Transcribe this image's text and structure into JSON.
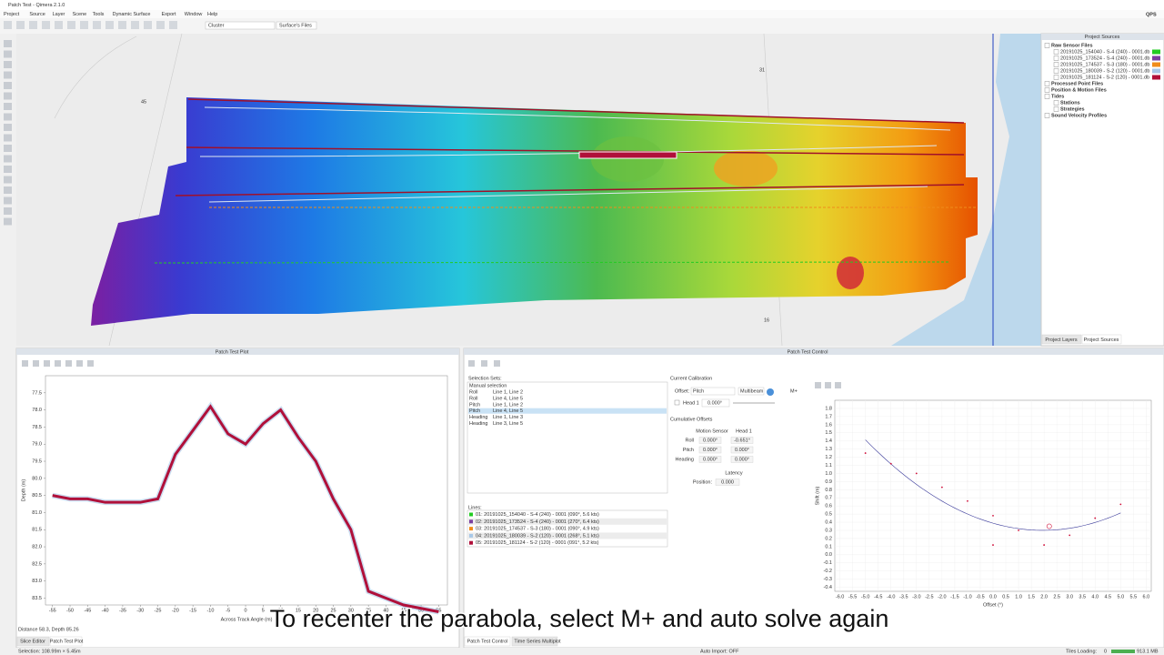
{
  "window": {
    "title": "Patch Test - Qimera 2.1.0",
    "menu": [
      "Project",
      "Source",
      "Layer",
      "Scene",
      "Tools",
      "Dynamic Surface",
      "Export",
      "Window",
      "Help"
    ],
    "toolbar": {
      "cluster": "Cluster",
      "files": "Surface's Files"
    },
    "logo": "QPS"
  },
  "map": {
    "labels": [
      "31",
      "45",
      "16"
    ]
  },
  "project_sources": {
    "title": "Project Sources",
    "raw": "Raw Sensor Files",
    "files": [
      {
        "name": "20191025_154040 - S-4 (240) - 0001.db",
        "color": "#22cc22"
      },
      {
        "name": "20191025_173524 - S-4 (240) - 0001.db",
        "color": "#7b3fa0"
      },
      {
        "name": "20191025_174537 - S-3 (180) - 0001.db",
        "color": "#f08c1a"
      },
      {
        "name": "20191025_180039 - S-2 (120) - 0001.db",
        "color": "#a8c8e8"
      },
      {
        "name": "20191025_181124 - S-2 (120) - 0001.db",
        "color": "#b0103a"
      }
    ],
    "groups": [
      "Processed Point Files",
      "Position & Motion Files",
      "Tides"
    ],
    "tides_children": [
      "Stations",
      "Strategies"
    ],
    "svp": "Sound Velocity Profiles",
    "tabs": [
      "Project Layers",
      "Project Sources"
    ]
  },
  "patch_test_plot": {
    "title": "Patch Test Plot",
    "x_label": "Across Track Angle (m)",
    "y_label": "Depth (m)",
    "xlim": [
      -57,
      57.5
    ],
    "ylim": [
      77,
      83.7
    ],
    "xticks": [
      -55,
      -50,
      -45,
      -40,
      -35,
      -30,
      -25,
      -20,
      -15,
      -10,
      -5,
      0,
      5,
      10,
      15,
      20,
      25,
      30,
      35,
      40,
      45,
      50,
      55
    ],
    "yticks": [
      77.5,
      {
        "value": 78,
        "label": "78.0"
      },
      78.5,
      {
        "value": 79,
        "label": "79.0"
      },
      79.5,
      {
        "value": 80,
        "label": "80.0"
      },
      80.5,
      {
        "value": 81,
        "label": "81.0"
      },
      81.5,
      {
        "value": 82,
        "label": "82.0"
      },
      82.5,
      {
        "value": 83,
        "label": "83.0"
      },
      83.5
    ],
    "x": [
      -55,
      -50,
      -45,
      -40,
      -35,
      -30,
      -25,
      -20,
      -15,
      -10,
      -5,
      0,
      5,
      10,
      15,
      20,
      25,
      30,
      35,
      40,
      45,
      50,
      55
    ],
    "depth": [
      80.5,
      80.6,
      80.6,
      80.7,
      80.7,
      80.7,
      80.6,
      79.3,
      78.6,
      77.9,
      78.7,
      79.0,
      78.4,
      78.0,
      78.8,
      79.5,
      80.6,
      81.5,
      83.3,
      83.5,
      83.7,
      83.8,
      83.9
    ],
    "readout": "Distance 58.3, Depth 85.26",
    "tabs": [
      "Slice Editor",
      "Patch Test Plot"
    ]
  },
  "patch_test_control": {
    "title": "Patch Test Control",
    "selection_sets_label": "Selection Sets:",
    "manual": "Manual selection",
    "selection_sets": [
      [
        "Roll",
        "Line 1, Line 2"
      ],
      [
        "Roll",
        "Line 4, Line 5"
      ],
      [
        "Pitch",
        "Line 1, Line 2"
      ],
      [
        "Pitch",
        "Line 4, Line 5"
      ],
      [
        "Heading",
        "Line 1, Line 3"
      ],
      [
        "Heading",
        "Line 3, Line 5"
      ]
    ],
    "lines_label": "Lines:",
    "lines": [
      "01: 20191025_154040 - S-4 (240) - 0001 (090°, 5.6 kts)",
      "02: 20191025_173524 - S-4 (240) - 0001 (270°, 6.4 kts)",
      "03: 20191025_174537 - S-3 (180) - 0001 (090°, 4.9 kts)",
      "04: 20191025_180039 - S-2 (120) - 0001 (268°, 5.1 kts)",
      "05: 20191025_181124 - S-2 (120) - 0001 (091°, 5.2 kts)"
    ],
    "current_calibration": "Current Calibration",
    "offset_label": "Offset:",
    "offset": "Pitch",
    "sensor": "Multibeam",
    "mplus": "M+",
    "head": "Head 1",
    "head_value": "0.000°",
    "cumulative": "Cumulative Offsets",
    "columns": [
      "Motion Sensor",
      "Head 1"
    ],
    "rows": [
      [
        "Roll",
        "0.000°",
        "-0.651°"
      ],
      [
        "Pitch",
        "0.000°",
        "0.000°"
      ],
      [
        "Heading",
        "0.000°",
        "0.000°"
      ]
    ],
    "latency": "Latency",
    "position_label": "Position:",
    "position": "0.000",
    "plot": {
      "x_label": "Offset (°)",
      "y_label": "Shift (m)",
      "xlim": [
        -6.2,
        6.2
      ],
      "ylim": [
        -0.45,
        1.9
      ],
      "xticks": [
        {
          "value": -6,
          "label": "-6.0"
        },
        -5.5,
        {
          "value": -5,
          "label": "-5.0"
        },
        -4.5,
        {
          "value": -4,
          "label": "-4.0"
        },
        -3.5,
        {
          "value": -3,
          "label": "-3.0"
        },
        -2.5,
        {
          "value": -2,
          "label": "-2.0"
        },
        -1.5,
        {
          "value": -1,
          "label": "-1.0"
        },
        -0.5,
        {
          "value": 0,
          "label": "0.0"
        },
        0.5,
        {
          "value": 1,
          "label": "1.0"
        },
        1.5,
        {
          "value": 2,
          "label": "2.0"
        },
        2.5,
        {
          "value": 3,
          "label": "3.0"
        },
        3.5,
        {
          "value": 4,
          "label": "4.0"
        },
        4.5,
        {
          "value": 5,
          "label": "5.0"
        },
        5.5,
        {
          "value": 6,
          "label": "6.0"
        }
      ],
      "yticks": [
        1.8,
        1.7,
        1.6,
        1.5,
        1.4,
        1.3,
        1.2,
        1.1,
        {
          "value": 1,
          "label": "1.0"
        },
        0.9,
        0.8,
        0.7,
        0.6,
        0.5,
        0.4,
        0.3,
        0.2,
        0.1,
        {
          "value": 0,
          "label": "0.0"
        },
        -0.1,
        -0.2,
        -0.3,
        -0.4
      ],
      "x": [
        -5,
        -4,
        -3,
        -2,
        -1,
        0,
        0,
        1,
        2,
        3,
        4,
        5
      ],
      "y": [
        1.25,
        1.12,
        1.0,
        0.83,
        0.66,
        0.48,
        0.12,
        0.3,
        0.12,
        0.24,
        0.45,
        0.62
      ],
      "solution": {
        "x": 2.2,
        "y": 0.35
      }
    },
    "tabs": [
      "Patch Test Control",
      "Time Series Multiplot"
    ]
  },
  "status": {
    "selection": "Selection: 108.99m × 5.45m",
    "auto_import": "Auto Import: OFF",
    "tiles": "Tiles Loading:",
    "tiles_count": "0",
    "memory": "913.1 MB"
  },
  "caption": "To recenter the parabola, select M+ and auto solve again"
}
